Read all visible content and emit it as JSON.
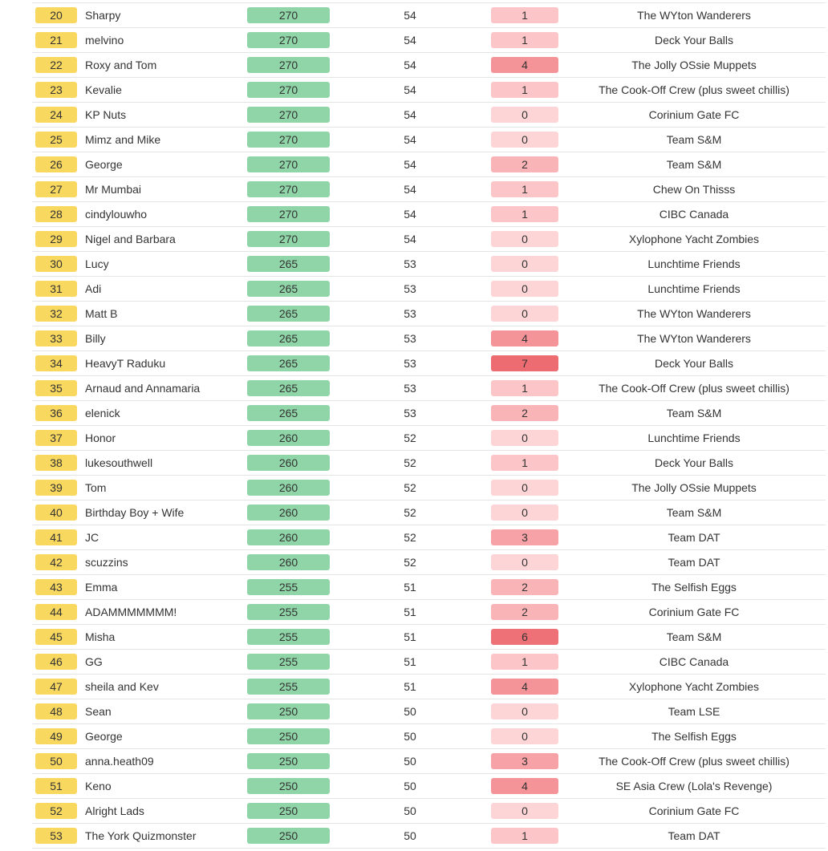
{
  "colors": {
    "rank_badge": "#f9d860",
    "score_badge": "#8fd5a7",
    "wrong_scale": {
      "0": "#fdd5d7",
      "1": "#fcc5c8",
      "2": "#f9b4b7",
      "3": "#f6a2a6",
      "4": "#f49498",
      "6": "#ed7176",
      "7": "#ed6c72"
    }
  },
  "rows": [
    {
      "rank": "20",
      "name": "Sharpy",
      "score": "270",
      "correct": "54",
      "wrong": "1",
      "team": "The WYton Wanderers"
    },
    {
      "rank": "21",
      "name": "melvino",
      "score": "270",
      "correct": "54",
      "wrong": "1",
      "team": "Deck Your Balls"
    },
    {
      "rank": "22",
      "name": "Roxy and Tom",
      "score": "270",
      "correct": "54",
      "wrong": "4",
      "team": "The Jolly OSsie Muppets"
    },
    {
      "rank": "23",
      "name": "Kevalie",
      "score": "270",
      "correct": "54",
      "wrong": "1",
      "team": "The Cook-Off Crew (plus sweet chillis)"
    },
    {
      "rank": "24",
      "name": "KP Nuts",
      "score": "270",
      "correct": "54",
      "wrong": "0",
      "team": "Corinium Gate FC"
    },
    {
      "rank": "25",
      "name": "Mimz and Mike",
      "score": "270",
      "correct": "54",
      "wrong": "0",
      "team": "Team S&M"
    },
    {
      "rank": "26",
      "name": "George",
      "score": "270",
      "correct": "54",
      "wrong": "2",
      "team": "Team S&M"
    },
    {
      "rank": "27",
      "name": "Mr Mumbai",
      "score": "270",
      "correct": "54",
      "wrong": "1",
      "team": "Chew On Thisss"
    },
    {
      "rank": "28",
      "name": "cindylouwho",
      "score": "270",
      "correct": "54",
      "wrong": "1",
      "team": "CIBC Canada"
    },
    {
      "rank": "29",
      "name": "Nigel and Barbara",
      "score": "270",
      "correct": "54",
      "wrong": "0",
      "team": "Xylophone Yacht Zombies"
    },
    {
      "rank": "30",
      "name": "Lucy",
      "score": "265",
      "correct": "53",
      "wrong": "0",
      "team": "Lunchtime Friends"
    },
    {
      "rank": "31",
      "name": "Adi",
      "score": "265",
      "correct": "53",
      "wrong": "0",
      "team": "Lunchtime Friends"
    },
    {
      "rank": "32",
      "name": "Matt B",
      "score": "265",
      "correct": "53",
      "wrong": "0",
      "team": "The WYton Wanderers"
    },
    {
      "rank": "33",
      "name": "Billy",
      "score": "265",
      "correct": "53",
      "wrong": "4",
      "team": "The WYton Wanderers"
    },
    {
      "rank": "34",
      "name": "HeavyT Raduku",
      "score": "265",
      "correct": "53",
      "wrong": "7",
      "team": "Deck Your Balls"
    },
    {
      "rank": "35",
      "name": "Arnaud and Annamaria",
      "score": "265",
      "correct": "53",
      "wrong": "1",
      "team": "The Cook-Off Crew (plus sweet chillis)"
    },
    {
      "rank": "36",
      "name": "elenick",
      "score": "265",
      "correct": "53",
      "wrong": "2",
      "team": "Team S&M"
    },
    {
      "rank": "37",
      "name": "Honor",
      "score": "260",
      "correct": "52",
      "wrong": "0",
      "team": "Lunchtime Friends"
    },
    {
      "rank": "38",
      "name": "lukesouthwell",
      "score": "260",
      "correct": "52",
      "wrong": "1",
      "team": "Deck Your Balls"
    },
    {
      "rank": "39",
      "name": "Tom",
      "score": "260",
      "correct": "52",
      "wrong": "0",
      "team": "The Jolly OSsie Muppets"
    },
    {
      "rank": "40",
      "name": "Birthday Boy + Wife",
      "score": "260",
      "correct": "52",
      "wrong": "0",
      "team": "Team S&M"
    },
    {
      "rank": "41",
      "name": "JC",
      "score": "260",
      "correct": "52",
      "wrong": "3",
      "team": "Team DAT"
    },
    {
      "rank": "42",
      "name": "scuzzins",
      "score": "260",
      "correct": "52",
      "wrong": "0",
      "team": "Team DAT"
    },
    {
      "rank": "43",
      "name": "Emma",
      "score": "255",
      "correct": "51",
      "wrong": "2",
      "team": "The Selfish Eggs"
    },
    {
      "rank": "44",
      "name": "ADAMMMMMMM!",
      "score": "255",
      "correct": "51",
      "wrong": "2",
      "team": "Corinium Gate FC"
    },
    {
      "rank": "45",
      "name": "Misha",
      "score": "255",
      "correct": "51",
      "wrong": "6",
      "team": "Team S&M"
    },
    {
      "rank": "46",
      "name": "GG",
      "score": "255",
      "correct": "51",
      "wrong": "1",
      "team": "CIBC Canada"
    },
    {
      "rank": "47",
      "name": "sheila and Kev",
      "score": "255",
      "correct": "51",
      "wrong": "4",
      "team": "Xylophone Yacht Zombies"
    },
    {
      "rank": "48",
      "name": "Sean",
      "score": "250",
      "correct": "50",
      "wrong": "0",
      "team": "Team LSE"
    },
    {
      "rank": "49",
      "name": "George",
      "score": "250",
      "correct": "50",
      "wrong": "0",
      "team": "The Selfish Eggs"
    },
    {
      "rank": "50",
      "name": "anna.heath09",
      "score": "250",
      "correct": "50",
      "wrong": "3",
      "team": "The Cook-Off Crew (plus sweet chillis)"
    },
    {
      "rank": "51",
      "name": "Keno",
      "score": "250",
      "correct": "50",
      "wrong": "4",
      "team": "SE Asia Crew (Lola's Revenge)"
    },
    {
      "rank": "52",
      "name": "Alright Lads",
      "score": "250",
      "correct": "50",
      "wrong": "0",
      "team": "Corinium Gate FC"
    },
    {
      "rank": "53",
      "name": "The York Quizmonster",
      "score": "250",
      "correct": "50",
      "wrong": "1",
      "team": "Team DAT"
    }
  ]
}
